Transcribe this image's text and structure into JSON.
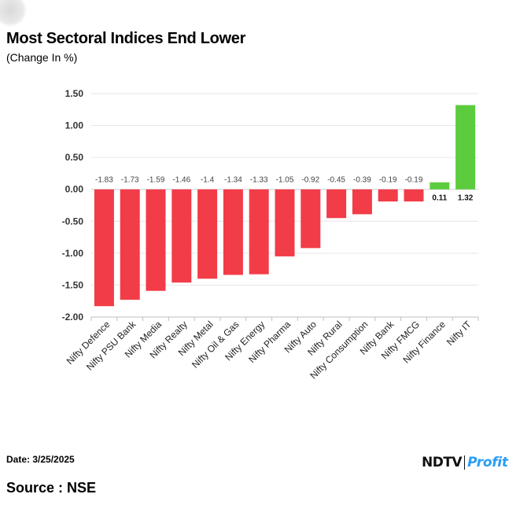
{
  "chart_data": {
    "type": "bar",
    "title": "Most Sectoral Indices End Lower",
    "subtitle": "(Change In %)",
    "categories": [
      "Nifty Defence",
      "Nifty PSU Bank",
      "Nifty Media",
      "Nifty Realty",
      "Nifty Metal",
      "Nifty Oil & Gas",
      "Nifty Energy",
      "Nifty Pharma",
      "Nifty Auto",
      "Nifty Rural",
      "Nifty Consumption",
      "Nifty Bank",
      "Nifty FMCG",
      "Nifty Finance",
      "Nifty IT"
    ],
    "values": [
      -1.83,
      -1.73,
      -1.59,
      -1.46,
      -1.4,
      -1.34,
      -1.33,
      -1.05,
      -0.92,
      -0.45,
      -0.39,
      -0.19,
      -0.19,
      0.11,
      1.32
    ],
    "data_labels": [
      "-1.83",
      "-1.73",
      "-1.59",
      "-1.46",
      "-1.4",
      "-1.34",
      "-1.33",
      "-1.05",
      "-0.92",
      "-0.45",
      "-0.39",
      "-0.19",
      "-0.19",
      "0.11",
      "1.32"
    ],
    "y_ticks": [
      "1.50",
      "1.00",
      "0.50",
      "0.00",
      "-0.50",
      "-1.00",
      "-1.50",
      "-2.00"
    ],
    "ylim": [
      -2.0,
      1.5
    ],
    "grid": true,
    "colors": {
      "negative": "#f23c48",
      "positive": "#5ccc3e"
    }
  },
  "footer": {
    "date": "Date: 3/25/2025",
    "source": "Source : NSE"
  },
  "logo": {
    "ndtv": "NDTV",
    "profit": "Profit"
  }
}
